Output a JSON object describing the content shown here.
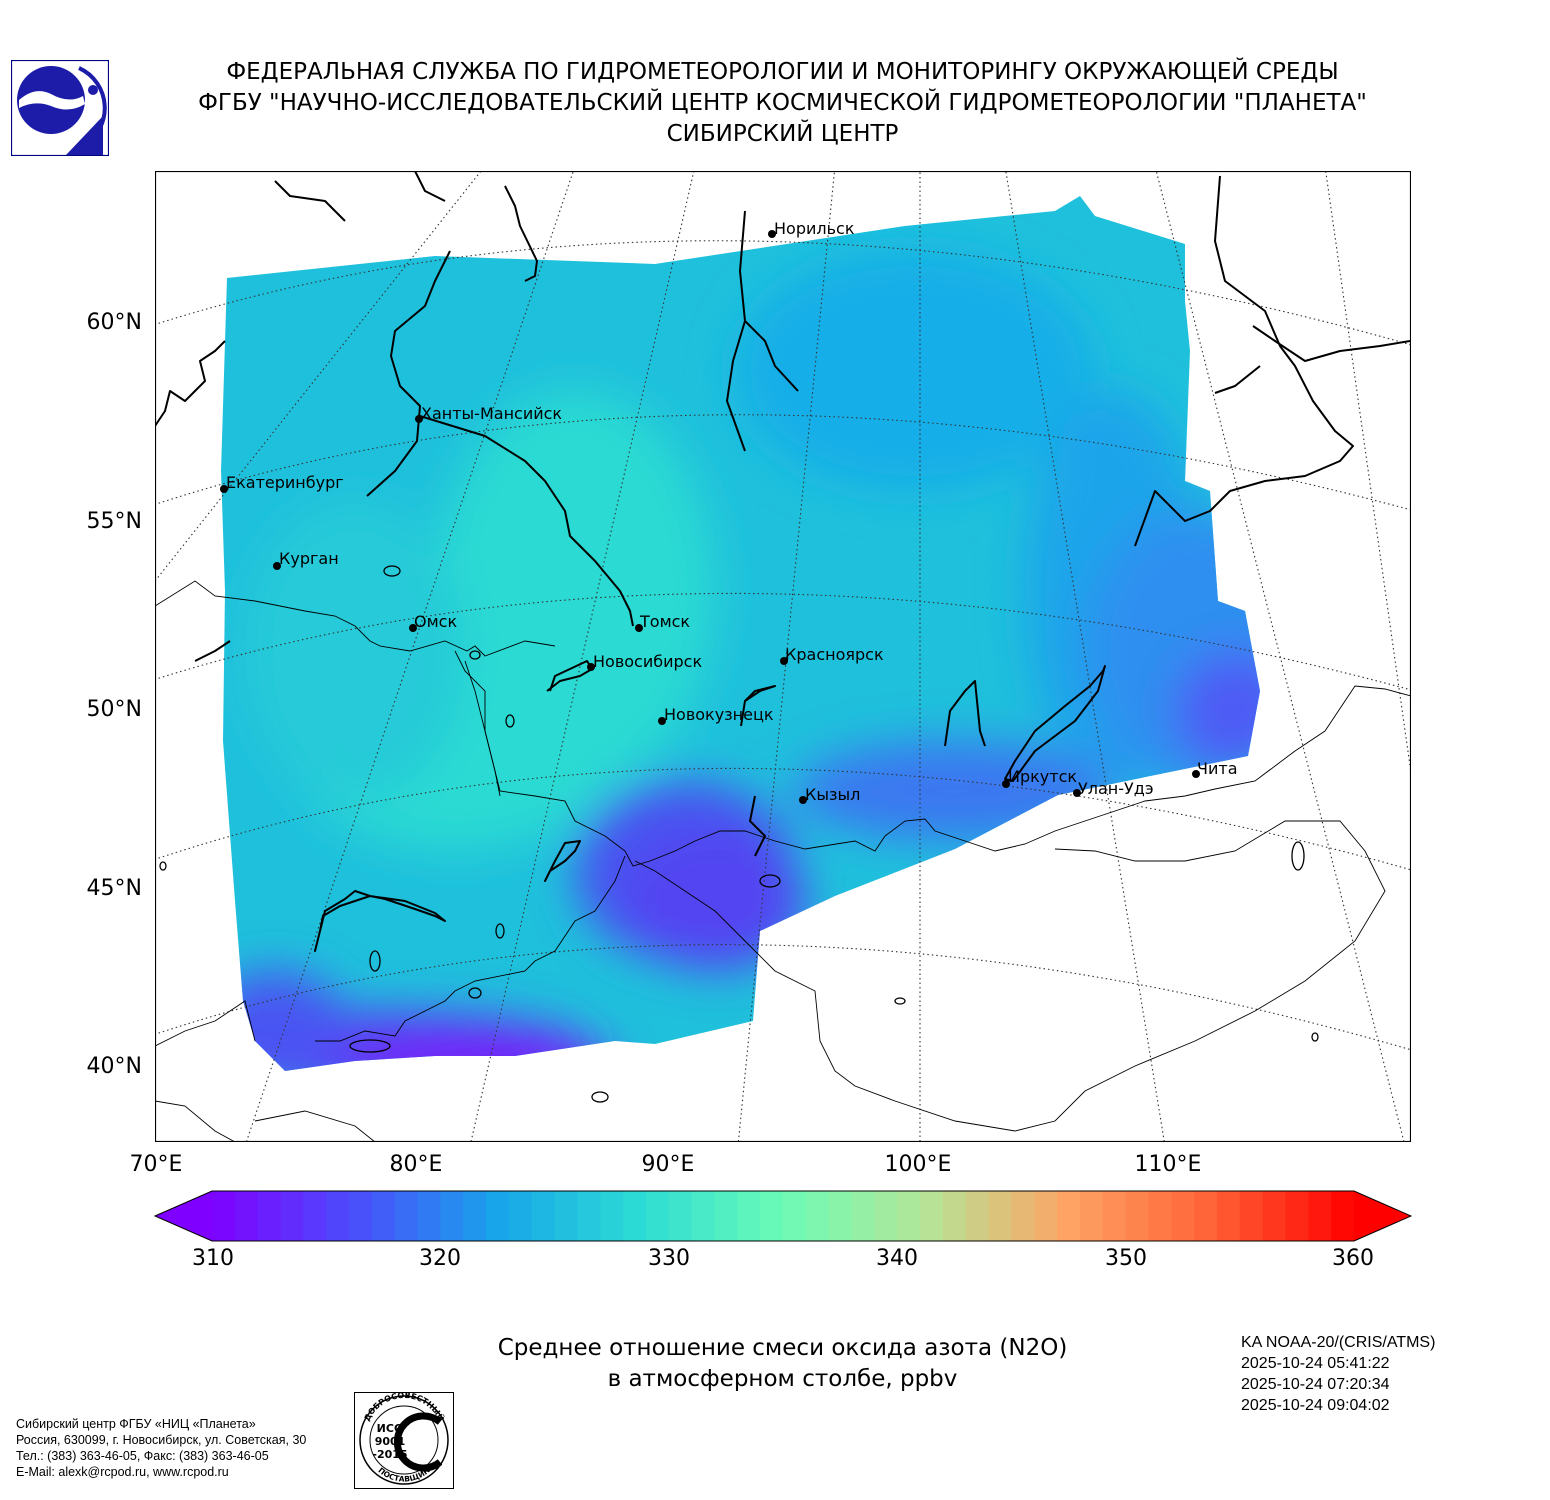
{
  "header": {
    "line1": "ФЕДЕРАЛЬНАЯ СЛУЖБА ПО ГИДРОМЕТЕОРОЛОГИИ И МОНИТОРИНГУ ОКРУЖАЮЩЕЙ СРЕДЫ",
    "line2": "ФГБУ \"НАУЧНО-ИССЛЕДОВАТЕЛЬСКИЙ ЦЕНТР КОСМИЧЕСКОЙ ГИДРОМЕТЕОРОЛОГИИ \"ПЛАНЕТА\"",
    "line3": "СИБИРСКИЙ ЦЕНТР"
  },
  "map": {
    "lat_labels": [
      "60°N",
      "55°N",
      "50°N",
      "45°N",
      "40°N"
    ],
    "lon_labels": [
      "70°E",
      "80°E",
      "90°E",
      "100°E",
      "110°E"
    ],
    "cities": [
      "Норильск",
      "Ханты-Мансийск",
      "Екатеринбург",
      "Курган",
      "Омск",
      "Томск",
      "Новосибирск",
      "Красноярск",
      "Новокузнецк",
      "Иркутск",
      "Кызыл",
      "Улан-Удэ",
      "Чита"
    ]
  },
  "colorbar": {
    "min": 310,
    "max": 360,
    "tick_labels": [
      "310",
      "320",
      "330",
      "340",
      "350",
      "360"
    ],
    "colors": [
      "#7f00ff",
      "#4b4efc",
      "#18a5ea",
      "#2cdcd4",
      "#6cfcb6",
      "#b5e597",
      "#fea364",
      "#ff6236",
      "#ff0000"
    ]
  },
  "caption": {
    "line1": "Среднее отношение смеси оксида азота (N2O)",
    "line2": "в атмосферном столбе, ppbv"
  },
  "satellite": {
    "name": "KA NOAA-20/(CRIS/ATMS)",
    "time1": "2025-10-24 05:41:22",
    "time2": "2025-10-24 07:20:34",
    "time3": "2025-10-24 09:04:02"
  },
  "contact": {
    "line1": "Сибирский центр ФГБУ «НИЦ «Планета»",
    "line2": "Россия, 630099, г. Новосибирск, ул. Советская, 30",
    "line3": "Тел.: (383) 363-46-05, Факс: (383) 363-46-05",
    "line4": "E-Mail: alexk@rcpod.ru, www.rcpod.ru"
  },
  "iso_badge": {
    "top_text": "ДОБРОСОВЕСТНЫЙ",
    "line1": "ИСО",
    "line2": "9001",
    "line3": "-2015",
    "bottom_text": "ПОСТАВЩИК"
  }
}
